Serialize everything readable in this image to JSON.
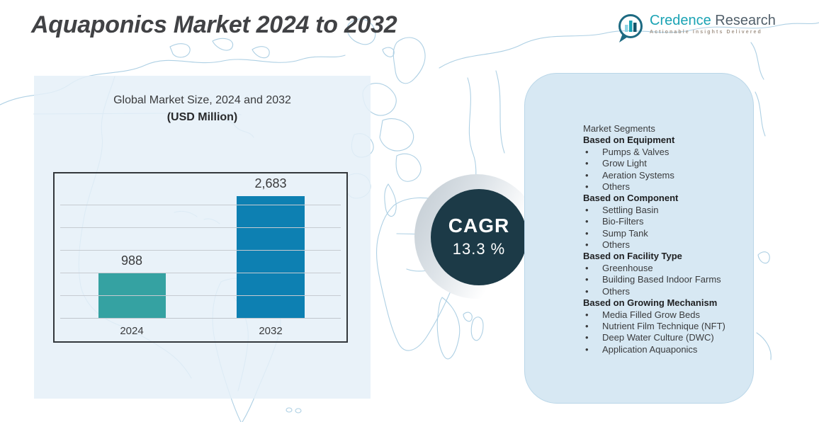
{
  "header": {
    "title": "Aquaponics Market 2024 to 2032"
  },
  "logo": {
    "name_primary": "Credence",
    "name_secondary": "Research",
    "tagline": "Actionable Insights Delivered",
    "icon": "bar-chart-bubble-icon",
    "colors": {
      "primary": "#1aa3b4",
      "secondary": "#52606b",
      "ring": "#1d6a82"
    }
  },
  "chart_data": {
    "type": "bar",
    "title": "Global Market Size, 2024 and 2032",
    "subtitle": "(USD Million)",
    "categories": [
      "2024",
      "2032"
    ],
    "values": [
      988,
      2683
    ],
    "value_labels": [
      "988",
      "2,683"
    ],
    "bar_colors": [
      "#35a2a2",
      "#0d80b2"
    ],
    "ylim": [
      0,
      3000
    ],
    "gridline_step": 500,
    "grid": true,
    "legend": "none",
    "xlabel": "",
    "ylabel": ""
  },
  "cagr": {
    "label": "CAGR",
    "value": "13.3 %",
    "circle_color": "#1c3a47"
  },
  "segments": {
    "title": "Market Segments",
    "groups": [
      {
        "heading": "Based on Equipment",
        "items": [
          "Pumps & Valves",
          "Grow Light",
          "Aeration Systems",
          "Others"
        ]
      },
      {
        "heading": "Based on Component",
        "items": [
          "Settling Basin",
          "Bio-Filters",
          "Sump Tank",
          "Others"
        ]
      },
      {
        "heading": "Based on Facility Type",
        "items": [
          "Greenhouse",
          "Building Based Indoor Farms",
          "Others"
        ]
      },
      {
        "heading": "Based on Growing Mechanism",
        "items": [
          "Media Filled Grow Beds",
          "Nutrient Film Technique (NFT)",
          "Deep Water Culture (DWC)",
          "Application Aquaponics"
        ]
      }
    ]
  },
  "colors": {
    "panel_left": "#e5f0f8",
    "panel_right": "#d7e8f3",
    "map_line": "#aed0e4",
    "frame_border": "#33383c",
    "text": "#3a3b3d"
  }
}
